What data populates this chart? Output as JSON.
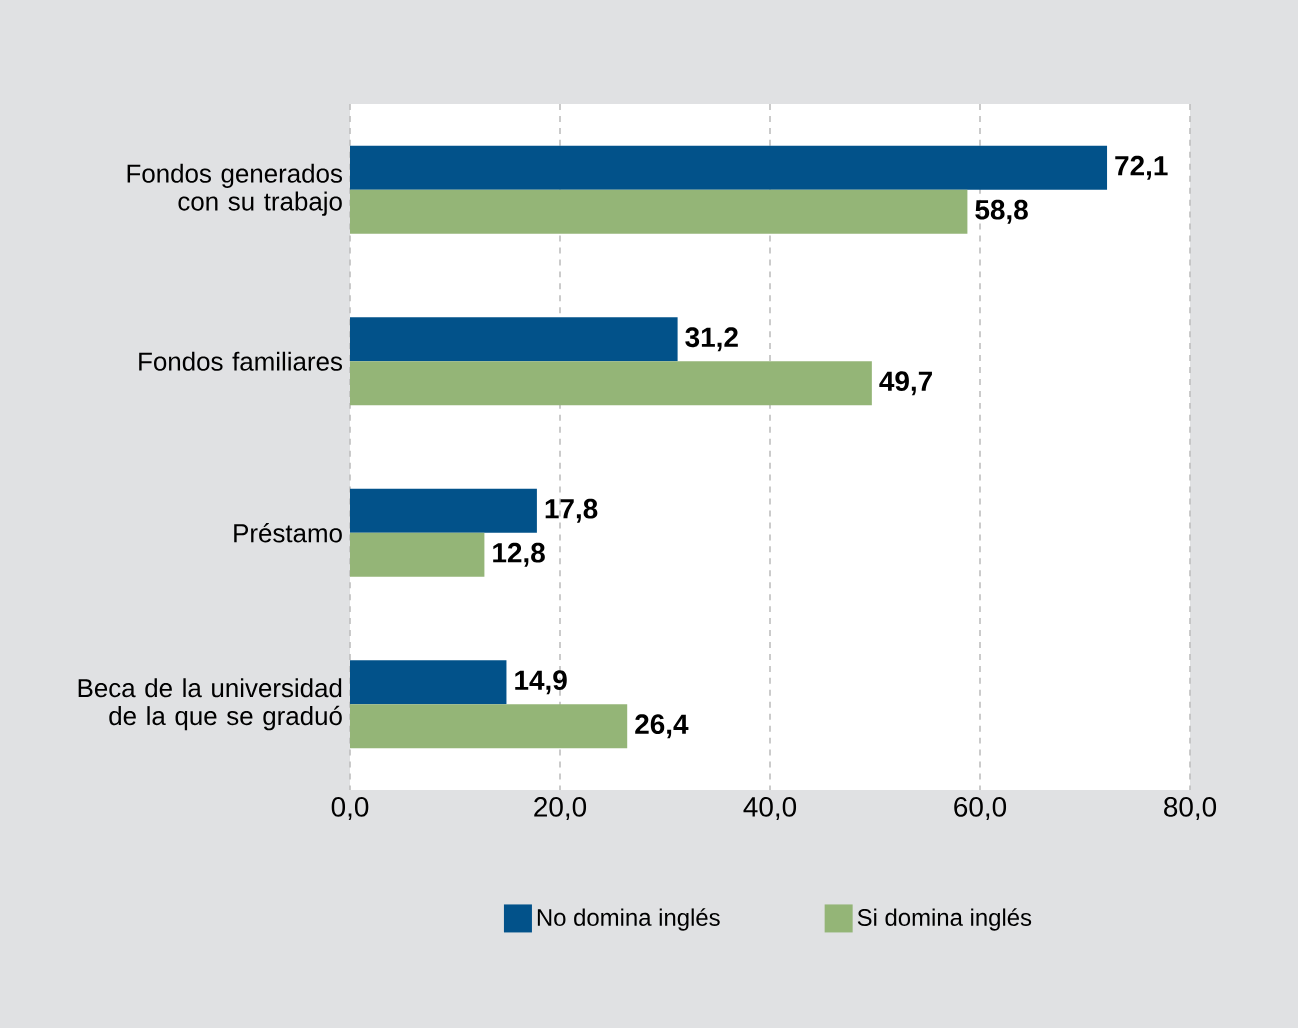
{
  "chart_data": {
    "type": "bar",
    "orientation": "horizontal",
    "categories": [
      "Fondos generados con su trabajo",
      "Fondos familiares",
      "Préstamo",
      "Beca de la universidad de la que se graduó"
    ],
    "series": [
      {
        "name": "No domina inglés",
        "color": "#02528a",
        "values": [
          72.1,
          31.2,
          17.8,
          14.9
        ],
        "value_labels": [
          "72,1",
          "31,2",
          "17,8",
          "14,9"
        ]
      },
      {
        "name": "Si domina inglés",
        "color": "#94b577",
        "values": [
          58.8,
          49.7,
          12.8,
          26.4
        ],
        "value_labels": [
          "58,8",
          "49,7",
          "12,8",
          "26,4"
        ]
      }
    ],
    "xlim": [
      0,
      80
    ],
    "xticks": [
      {
        "value": 0,
        "label": "0,0"
      },
      {
        "value": 20,
        "label": "20,0"
      },
      {
        "value": 40,
        "label": "40,0"
      },
      {
        "value": 60,
        "label": "60,0"
      },
      {
        "value": 80,
        "label": "80,0"
      }
    ],
    "grid": "x",
    "legend": "bottom"
  }
}
